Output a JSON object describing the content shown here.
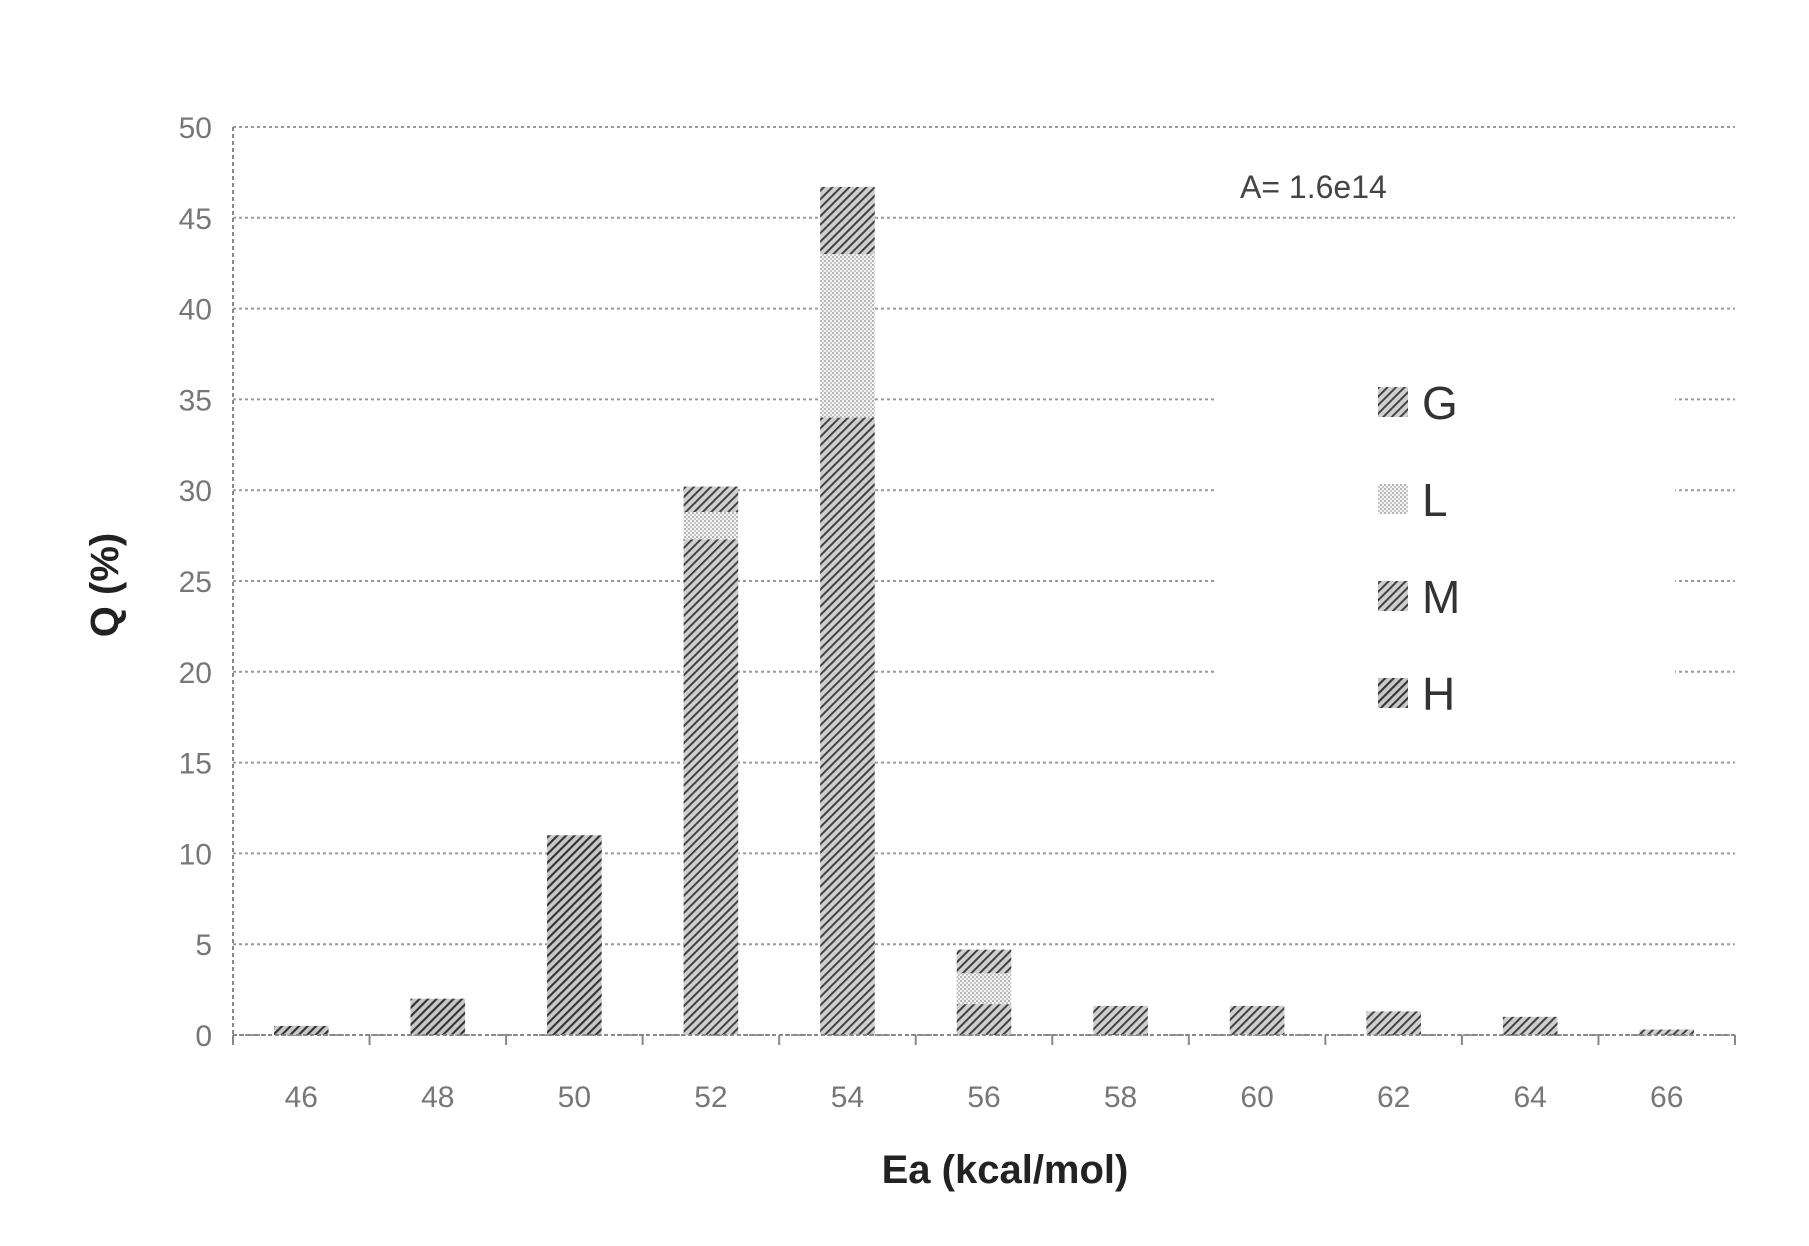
{
  "chart_data": {
    "type": "bar",
    "stacked": true,
    "title": "",
    "xlabel": "Ea (kcal/mol)",
    "ylabel": "Q (%)",
    "ylim": [
      0,
      50
    ],
    "yticks": [
      "0",
      "5",
      "10",
      "15",
      "20",
      "25",
      "30",
      "35",
      "40",
      "45",
      "50"
    ],
    "grid": "horizontal-dotted",
    "legend_position": "right",
    "annotation": "A= 1.6e14",
    "categories": [
      "46",
      "48",
      "50",
      "52",
      "54",
      "56",
      "58",
      "60",
      "62",
      "64",
      "66"
    ],
    "series": [
      {
        "name": "H",
        "values": [
          0.5,
          2.0,
          11.0,
          0,
          0,
          0,
          0,
          0,
          0,
          0,
          0
        ]
      },
      {
        "name": "M",
        "values": [
          0,
          0,
          0,
          27.3,
          34.0,
          1.7,
          1.6,
          1.6,
          1.3,
          1.0,
          0.3
        ]
      },
      {
        "name": "L",
        "values": [
          0,
          0,
          0,
          1.5,
          9.0,
          1.7,
          0,
          0,
          0,
          0,
          0
        ]
      },
      {
        "name": "G",
        "values": [
          0,
          0,
          0,
          1.4,
          3.7,
          1.3,
          0,
          0,
          0,
          0,
          0
        ]
      }
    ],
    "legend_order": [
      "G",
      "L",
      "M",
      "H"
    ],
    "colors": {
      "H": "#4a4a4a",
      "M": "#555555",
      "L": "#d9d9d9",
      "G": "#5e5e5e",
      "grid": "#9a9a9a",
      "axis": "#888888"
    }
  }
}
